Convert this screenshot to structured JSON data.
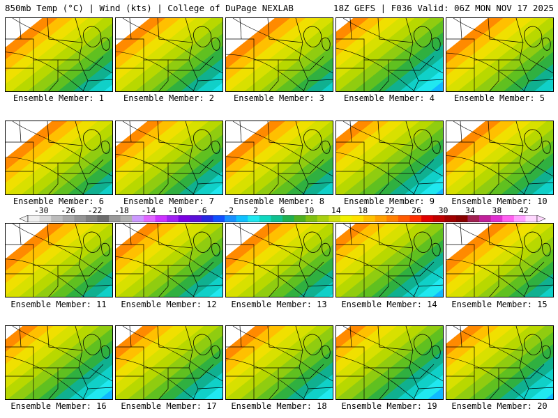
{
  "header": {
    "left_text": "850mb Temp (°C) | Wind (kts) | College of DuPage NEXLAB",
    "right_text": "18Z GEFS | F036 Valid: 06Z MON NOV 17 2025"
  },
  "member_label_prefix": "Ensemble Member: ",
  "members": [
    {
      "label": "Ensemble Member: 1",
      "number": 1,
      "warmth": 0.45
    },
    {
      "label": "Ensemble Member: 2",
      "number": 2,
      "warmth": 0.5
    },
    {
      "label": "Ensemble Member: 3",
      "number": 3,
      "warmth": 0.2
    },
    {
      "label": "Ensemble Member: 4",
      "number": 4,
      "warmth": 0.85
    },
    {
      "label": "Ensemble Member: 5",
      "number": 5,
      "warmth": 0.35
    },
    {
      "label": "Ensemble Member: 6",
      "number": 6,
      "warmth": 0.25
    },
    {
      "label": "Ensemble Member: 7",
      "number": 7,
      "warmth": 0.55
    },
    {
      "label": "Ensemble Member: 8",
      "number": 8,
      "warmth": 0.3
    },
    {
      "label": "Ensemble Member: 9",
      "number": 9,
      "warmth": 0.75
    },
    {
      "label": "Ensemble Member: 10",
      "number": 10,
      "warmth": 0.4
    },
    {
      "label": "Ensemble Member: 11",
      "number": 11,
      "warmth": 0.3
    },
    {
      "label": "Ensemble Member: 12",
      "number": 12,
      "warmth": 0.55
    },
    {
      "label": "Ensemble Member: 13",
      "number": 13,
      "warmth": 0.35
    },
    {
      "label": "Ensemble Member: 14",
      "number": 14,
      "warmth": 0.8
    },
    {
      "label": "Ensemble Member: 15",
      "number": 15,
      "warmth": 0.25
    },
    {
      "label": "Ensemble Member: 16",
      "number": 16,
      "warmth": 0.85
    },
    {
      "label": "Ensemble Member: 17",
      "number": 17,
      "warmth": 0.65
    },
    {
      "label": "Ensemble Member: 18",
      "number": 18,
      "warmth": 0.6
    },
    {
      "label": "Ensemble Member: 19",
      "number": 19,
      "warmth": 0.9
    },
    {
      "label": "Ensemble Member: 20",
      "number": 20,
      "warmth": 0.75
    }
  ],
  "colorbar": {
    "ticks": [
      "-30",
      "-26",
      "-22",
      "-18",
      "-14",
      "-10",
      "-6",
      "-2",
      "2",
      "6",
      "10",
      "14",
      "18",
      "22",
      "26",
      "30",
      "34",
      "38",
      "42"
    ],
    "colors": [
      "#f0f0f0",
      "#d8d8d8",
      "#bcbcbc",
      "#a8a8a8",
      "#949494",
      "#808080",
      "#6c6c6c",
      "#9a9a9a",
      "#b0b0b0",
      "#cc99ff",
      "#e066ff",
      "#cc33ff",
      "#a020f0",
      "#7a00e0",
      "#5a10d8",
      "#2828e0",
      "#1050ff",
      "#1890ff",
      "#10c0ff",
      "#20e8f0",
      "#10d8c0",
      "#10c090",
      "#20b050",
      "#50b020",
      "#80c010",
      "#a8d010",
      "#d0e010",
      "#f0f000",
      "#ffe000",
      "#ffc000",
      "#ffa000",
      "#ff8000",
      "#ff5a00",
      "#ff3000",
      "#e00000",
      "#c00000",
      "#a00000",
      "#880000",
      "#a02050",
      "#c0209a",
      "#e030d0",
      "#ff60f0",
      "#ffa0ff",
      "#ffd8ff"
    ],
    "min": -32,
    "max": 44
  },
  "palette": {
    "levels": [
      "#ff8a00",
      "#ffc000",
      "#f0e000",
      "#d8e000",
      "#b8d800",
      "#90cc10",
      "#60c020",
      "#30b040",
      "#10b090",
      "#10d0c8",
      "#20e8f0",
      "#10b8ff",
      "#1070ff",
      "#1838f0",
      "#3010e0",
      "#6000e8",
      "#8a00f0",
      "#b000f8",
      "#d010ff"
    ]
  }
}
